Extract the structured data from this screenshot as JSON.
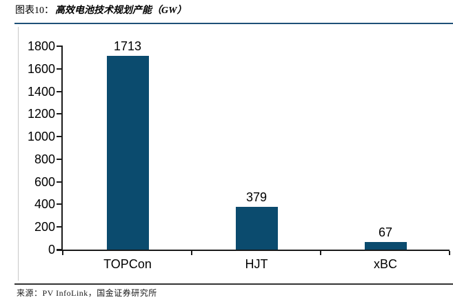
{
  "figure": {
    "label_prefix": "图表10：",
    "title": "高效电池技术规划产能（GW）",
    "source": "来源：PV InfoLink，国金证券研究所"
  },
  "chart_data": {
    "type": "bar",
    "title": "高效电池技术规划产能（GW）",
    "categories": [
      "TOPCon",
      "HJT",
      "xBC"
    ],
    "values": [
      1713,
      379,
      67
    ],
    "data_labels": [
      "1713",
      "379",
      "67"
    ],
    "xlabel": "",
    "ylabel": "",
    "ylim": [
      0,
      1800
    ],
    "ytick_interval": 200,
    "yticks": [
      "0",
      "200",
      "400",
      "600",
      "800",
      "1000",
      "1200",
      "1400",
      "1600",
      "1800"
    ],
    "grid": false,
    "legend_position": "none",
    "bar_color": "#0b4b6e"
  },
  "colors": {
    "bar": "#0b4b6e",
    "header_rule": "#1f5078",
    "footer_rule": "#333333",
    "axis": "#1a1a1a",
    "side_rule": "#c8c8c8"
  }
}
